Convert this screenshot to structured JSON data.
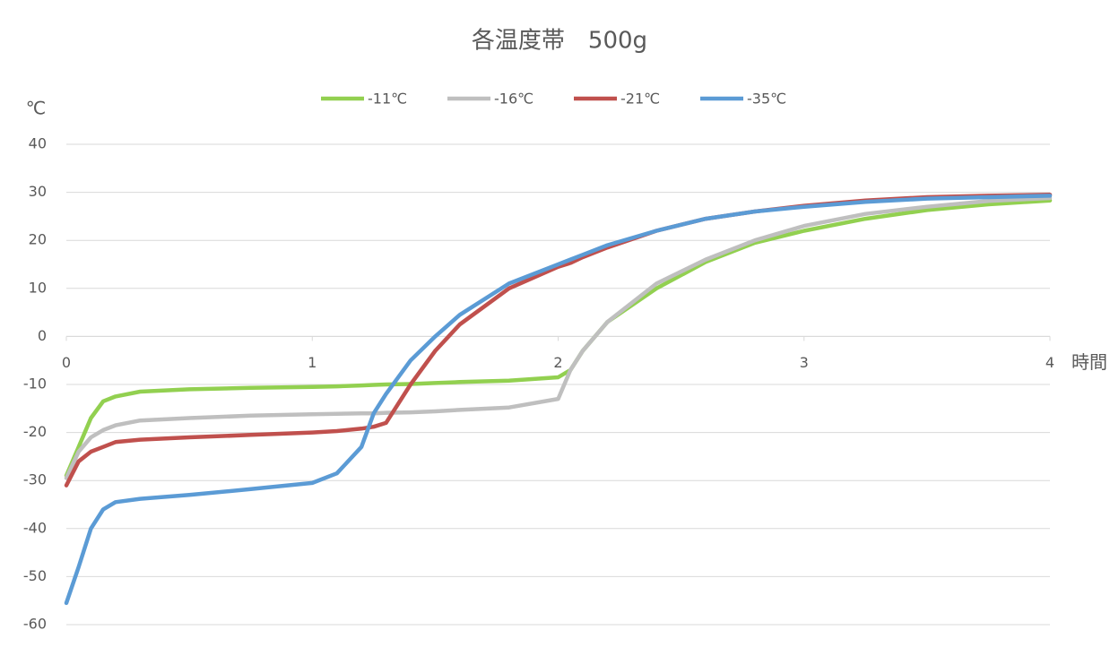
{
  "chart_data": {
    "type": "line",
    "title": "各温度帯　500g",
    "y_label": "℃",
    "x_label": "時間",
    "x": [
      0,
      0.05,
      0.1,
      0.15,
      0.2,
      0.3,
      0.5,
      0.75,
      1,
      1.1,
      1.2,
      1.25,
      1.3,
      1.4,
      1.5,
      1.6,
      1.8,
      2,
      2.05,
      2.1,
      2.2,
      2.4,
      2.6,
      2.8,
      3,
      3.25,
      3.5,
      3.75,
      4
    ],
    "series": [
      {
        "name": "-11℃",
        "color": "#92d050",
        "values": [
          -29,
          -23,
          -17,
          -13.5,
          -12.5,
          -11.5,
          -11,
          -10.7,
          -10.5,
          -10.4,
          -10.2,
          -10.1,
          -10,
          -9.9,
          -9.7,
          -9.5,
          -9.2,
          -8.5,
          -7,
          -3,
          3,
          10,
          15.5,
          19.5,
          22,
          24.5,
          26.3,
          27.5,
          28.3
        ]
      },
      {
        "name": "-16℃",
        "color": "#bfbfbf",
        "values": [
          -29.5,
          -24,
          -21,
          -19.5,
          -18.5,
          -17.5,
          -17,
          -16.5,
          -16.2,
          -16.1,
          -16,
          -16,
          -15.9,
          -15.8,
          -15.6,
          -15.3,
          -14.8,
          -13,
          -7,
          -3,
          3,
          11,
          16,
          20,
          23,
          25.5,
          27,
          28.2,
          28.8
        ]
      },
      {
        "name": "-21℃",
        "color": "#c0504d",
        "values": [
          -31,
          -26,
          -24,
          -23,
          -22,
          -21.5,
          -21,
          -20.5,
          -20,
          -19.7,
          -19.2,
          -18.8,
          -18,
          -10,
          -3,
          2.5,
          10,
          14.5,
          15.3,
          16.5,
          18.5,
          22,
          24.5,
          26,
          27.2,
          28.3,
          29,
          29.3,
          29.5
        ]
      },
      {
        "name": "-35℃",
        "color": "#5b9bd5",
        "values": [
          -55.5,
          -48,
          -40,
          -36,
          -34.5,
          -33.8,
          -33,
          -31.8,
          -30.5,
          -28.5,
          -23,
          -16,
          -12,
          -5,
          0,
          4.5,
          11,
          15,
          16,
          17,
          19,
          22,
          24.5,
          26,
          27,
          28,
          28.7,
          29,
          29.3
        ]
      }
    ],
    "xlim": [
      0,
      4
    ],
    "xticks": [
      0,
      1,
      2,
      3,
      4
    ],
    "ylim": [
      -60,
      40
    ],
    "yticks": [
      -60,
      -50,
      -40,
      -30,
      -20,
      -10,
      0,
      10,
      20,
      30,
      40
    ],
    "grid": true
  }
}
